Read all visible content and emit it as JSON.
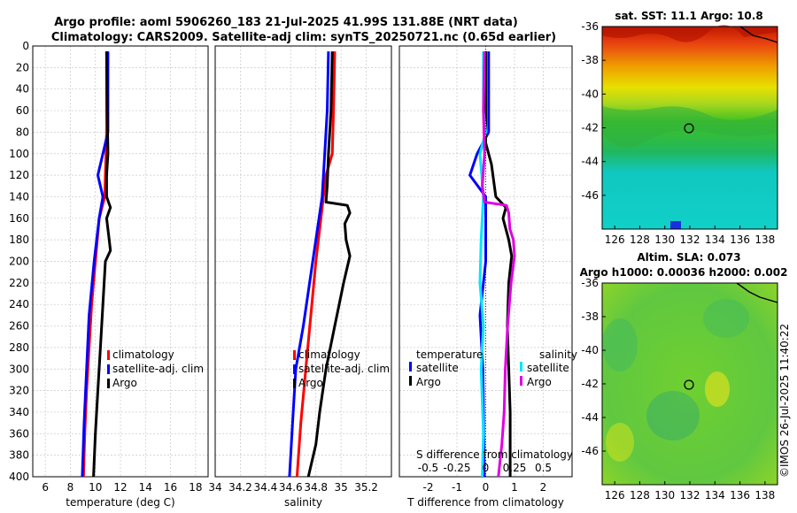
{
  "header": {
    "title_line1": "Argo profile: aoml 5906260_183 21-Jul-2025 41.99S 131.88E (NRT data)",
    "title_line2": "Climatology: CARS2009. Satellite-adj clim: synTS_20250721.nc (0.65d earlier)"
  },
  "colors": {
    "climatology": "#ff0000",
    "satellite": "#0000ff",
    "argo": "#000000",
    "sat_temp": "#00e5ff",
    "salinity_argo": "#e000e0",
    "grid": "#c8c8c8"
  },
  "chart_data": [
    {
      "id": "temperature",
      "type": "line",
      "xlabel": "temperature (deg C)",
      "ylabel": "",
      "xlim": [
        5,
        19
      ],
      "ylim": [
        400,
        0
      ],
      "xticks": [
        6,
        8,
        10,
        12,
        14,
        16,
        18
      ],
      "yticks": [
        0,
        20,
        40,
        60,
        80,
        100,
        120,
        140,
        160,
        180,
        200,
        220,
        240,
        260,
        280,
        300,
        320,
        340,
        360,
        380,
        400
      ],
      "legend": [
        "climatology",
        "satellite-adj. clim",
        "Argo"
      ],
      "series": [
        {
          "name": "climatology",
          "color": "#ff0000",
          "points": [
            [
              10.9,
              5
            ],
            [
              10.9,
              80
            ],
            [
              10.85,
              100
            ],
            [
              10.75,
              140
            ],
            [
              10.3,
              160
            ],
            [
              10.0,
              200
            ],
            [
              9.7,
              240
            ],
            [
              9.5,
              280
            ],
            [
              9.3,
              320
            ],
            [
              9.15,
              360
            ],
            [
              9.05,
              400
            ]
          ]
        },
        {
          "name": "satellite-adj. clim",
          "color": "#0000ff",
          "points": [
            [
              11.0,
              5
            ],
            [
              11.0,
              80
            ],
            [
              10.6,
              100
            ],
            [
              10.2,
              120
            ],
            [
              10.6,
              140
            ],
            [
              10.3,
              160
            ],
            [
              9.9,
              200
            ],
            [
              9.5,
              250
            ],
            [
              9.3,
              300
            ],
            [
              9.1,
              350
            ],
            [
              8.95,
              400
            ]
          ]
        },
        {
          "name": "Argo",
          "color": "#000000",
          "points": [
            [
              10.9,
              5
            ],
            [
              10.95,
              60
            ],
            [
              11.0,
              100
            ],
            [
              10.9,
              120
            ],
            [
              10.9,
              140
            ],
            [
              11.2,
              150
            ],
            [
              10.9,
              160
            ],
            [
              11.1,
              180
            ],
            [
              11.2,
              190
            ],
            [
              10.8,
              200
            ],
            [
              10.6,
              240
            ],
            [
              10.4,
              280
            ],
            [
              10.2,
              320
            ],
            [
              10.0,
              360
            ],
            [
              9.85,
              400
            ]
          ]
        }
      ]
    },
    {
      "id": "salinity",
      "type": "line",
      "xlabel": "salinity",
      "xlim": [
        34.0,
        35.4
      ],
      "ylim": [
        400,
        0
      ],
      "xticks": [
        34.0,
        34.2,
        34.4,
        34.6,
        34.8,
        35.0,
        35.2
      ],
      "xticklabels": [
        "34",
        "34.2",
        "34.4",
        "34.6",
        "34.8",
        "35",
        "35.2"
      ],
      "legend": [
        "climatology",
        "satellite-adj. clim",
        "Argo"
      ],
      "series": [
        {
          "name": "climatology",
          "color": "#ff0000",
          "points": [
            [
              34.95,
              5
            ],
            [
              34.94,
              60
            ],
            [
              34.93,
              100
            ],
            [
              34.88,
              120
            ],
            [
              34.86,
              140
            ],
            [
              34.84,
              160
            ],
            [
              34.8,
              200
            ],
            [
              34.76,
              250
            ],
            [
              34.72,
              300
            ],
            [
              34.68,
              350
            ],
            [
              34.65,
              400
            ]
          ]
        },
        {
          "name": "satellite-adj. clim",
          "color": "#0000ff",
          "points": [
            [
              34.9,
              5
            ],
            [
              34.89,
              60
            ],
            [
              34.87,
              100
            ],
            [
              34.85,
              140
            ],
            [
              34.8,
              180
            ],
            [
              34.75,
              220
            ],
            [
              34.7,
              260
            ],
            [
              34.64,
              300
            ],
            [
              34.62,
              340
            ],
            [
              34.59,
              400
            ]
          ]
        },
        {
          "name": "Argo",
          "color": "#000000",
          "points": [
            [
              34.93,
              5
            ],
            [
              34.92,
              60
            ],
            [
              34.9,
              100
            ],
            [
              34.89,
              130
            ],
            [
              34.88,
              145
            ],
            [
              35.05,
              148
            ],
            [
              35.07,
              155
            ],
            [
              35.03,
              165
            ],
            [
              35.04,
              180
            ],
            [
              35.07,
              195
            ],
            [
              35.02,
              220
            ],
            [
              34.95,
              260
            ],
            [
              34.88,
              300
            ],
            [
              34.83,
              340
            ],
            [
              34.8,
              370
            ],
            [
              34.74,
              400
            ]
          ]
        }
      ]
    },
    {
      "id": "differences",
      "type": "line",
      "xlabel": "T difference from climatology",
      "top_label": "S difference from climatology",
      "xlim": [
        -3,
        3
      ],
      "ylim": [
        400,
        0
      ],
      "xticks": [
        -2,
        -1,
        0,
        1,
        2
      ],
      "xticklabels": [
        "-2",
        "-1",
        "0",
        "1",
        "2"
      ],
      "sticks": [
        -0.5,
        -0.25,
        0,
        0.25,
        0.5
      ],
      "sticklabels": [
        "-0.5",
        "-0.25",
        "0",
        "0.25",
        "0.5"
      ],
      "slim": [
        -0.75,
        0.75
      ],
      "legend_temperature": {
        "title": "temperature",
        "items": [
          "satellite",
          "Argo"
        ]
      },
      "legend_salinity": {
        "title": "salinity",
        "items": [
          "satellite",
          "Argo"
        ]
      },
      "series": [
        {
          "name": "T satellite",
          "color": "#0000ff",
          "axis": "T",
          "points": [
            [
              0.1,
              5
            ],
            [
              0.1,
              80
            ],
            [
              -0.3,
              100
            ],
            [
              -0.55,
              120
            ],
            [
              0.0,
              140
            ],
            [
              0.0,
              200
            ],
            [
              -0.2,
              250
            ],
            [
              -0.1,
              300
            ],
            [
              -0.05,
              400
            ]
          ]
        },
        {
          "name": "T Argo",
          "color": "#000000",
          "axis": "T",
          "points": [
            [
              0.0,
              5
            ],
            [
              0.0,
              90
            ],
            [
              0.2,
              110
            ],
            [
              0.35,
              140
            ],
            [
              0.7,
              150
            ],
            [
              0.6,
              160
            ],
            [
              0.8,
              180
            ],
            [
              0.9,
              195
            ],
            [
              0.8,
              220
            ],
            [
              0.75,
              260
            ],
            [
              0.8,
              300
            ],
            [
              0.85,
              340
            ],
            [
              0.85,
              370
            ],
            [
              0.85,
              400
            ]
          ]
        },
        {
          "name": "S satellite",
          "color": "#00e5ff",
          "axis": "S",
          "points": [
            [
              -0.02,
              5
            ],
            [
              -0.02,
              60
            ],
            [
              0.0,
              80
            ],
            [
              -0.05,
              100
            ],
            [
              -0.02,
              140
            ],
            [
              -0.04,
              180
            ],
            [
              -0.05,
              220
            ],
            [
              -0.02,
              260
            ],
            [
              -0.04,
              300
            ],
            [
              -0.02,
              360
            ],
            [
              -0.03,
              400
            ]
          ]
        },
        {
          "name": "S Argo",
          "color": "#e000e0",
          "axis": "S",
          "points": [
            [
              -0.01,
              5
            ],
            [
              -0.02,
              60
            ],
            [
              -0.01,
              100
            ],
            [
              -0.03,
              130
            ],
            [
              -0.01,
              145
            ],
            [
              0.18,
              148
            ],
            [
              0.2,
              155
            ],
            [
              0.21,
              170
            ],
            [
              0.24,
              180
            ],
            [
              0.25,
              195
            ],
            [
              0.22,
              220
            ],
            [
              0.19,
              260
            ],
            [
              0.17,
              300
            ],
            [
              0.16,
              340
            ],
            [
              0.14,
              370
            ],
            [
              0.11,
              400
            ]
          ]
        }
      ]
    },
    {
      "id": "sst_map",
      "type": "heatmap",
      "title": "sat. SST: 11.1 Argo: 10.8",
      "xticks": [
        126,
        128,
        130,
        132,
        134,
        136,
        138
      ],
      "yticks": [
        -36,
        -38,
        -40,
        -42,
        -44,
        -46
      ],
      "marker": [
        131.88,
        -41.99
      ]
    },
    {
      "id": "sla_map",
      "type": "heatmap",
      "title_line1": "Altim. SLA: 0.073",
      "title_line2": "Argo h1000: 0.00036 h2000: 0.002",
      "xticks": [
        126,
        128,
        130,
        132,
        134,
        136,
        138
      ],
      "yticks": [
        -36,
        -38,
        -40,
        -42,
        -44,
        -46
      ],
      "marker": [
        131.88,
        -41.99
      ]
    }
  ],
  "credit": "©IMOS 26-Jul-2025 11:40:22"
}
